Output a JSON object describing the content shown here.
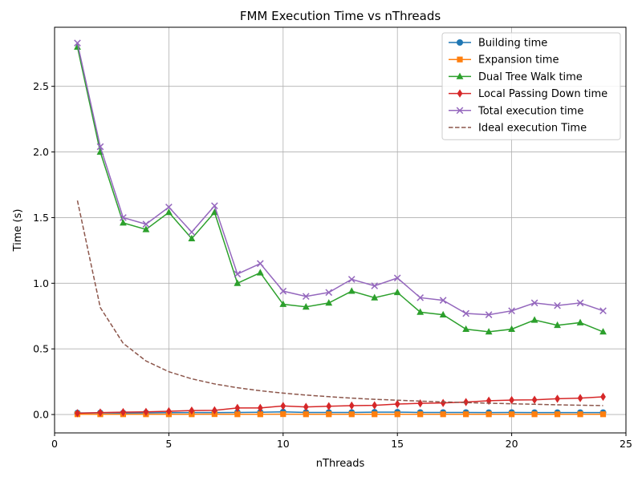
{
  "chart_data": {
    "type": "line",
    "title": "FMM Execution Time vs nThreads",
    "xlabel": "nThreads",
    "ylabel": "Time (s)",
    "xlim": [
      0,
      25
    ],
    "ylim": [
      -0.14,
      2.95
    ],
    "xticks": [
      0,
      5,
      10,
      15,
      20,
      25
    ],
    "yticks": [
      0.0,
      0.5,
      1.0,
      1.5,
      2.0,
      2.5
    ],
    "xtick_labels": [
      "0",
      "5",
      "10",
      "15",
      "20",
      "25"
    ],
    "ytick_labels": [
      "0.0",
      "0.5",
      "1.0",
      "1.5",
      "2.0",
      "2.5"
    ],
    "grid": true,
    "legend_position": "top-right",
    "x": [
      1,
      2,
      3,
      4,
      5,
      6,
      7,
      8,
      9,
      10,
      11,
      12,
      13,
      14,
      15,
      16,
      17,
      18,
      19,
      20,
      21,
      22,
      23,
      24
    ],
    "series": [
      {
        "name": "Building time",
        "color": "#1f77b4",
        "marker": "circle",
        "linestyle": "solid",
        "values": [
          0.012,
          0.013,
          0.012,
          0.013,
          0.014,
          0.015,
          0.015,
          0.016,
          0.017,
          0.02,
          0.016,
          0.016,
          0.016,
          0.018,
          0.018,
          0.016,
          0.016,
          0.016,
          0.015,
          0.016,
          0.015,
          0.015,
          0.015,
          0.015
        ]
      },
      {
        "name": "Expansion time",
        "color": "#ff7f0e",
        "marker": "square",
        "linestyle": "solid",
        "values": [
          0.002,
          0.002,
          0.002,
          0.002,
          0.002,
          0.002,
          0.003,
          0.002,
          0.002,
          0.003,
          0.002,
          0.002,
          0.002,
          0.002,
          0.002,
          0.002,
          0.002,
          0.002,
          0.002,
          0.002,
          0.002,
          0.002,
          0.002,
          0.002
        ]
      },
      {
        "name": "Dual Tree Walk time",
        "color": "#2ca02c",
        "marker": "triangle",
        "linestyle": "solid",
        "values": [
          2.8,
          2.0,
          1.46,
          1.41,
          1.54,
          1.34,
          1.54,
          1.0,
          1.08,
          0.84,
          0.82,
          0.85,
          0.94,
          0.89,
          0.93,
          0.78,
          0.76,
          0.65,
          0.63,
          0.65,
          0.72,
          0.68,
          0.7,
          0.63
        ]
      },
      {
        "name": "Local Passing Down time",
        "color": "#d62728",
        "marker": "diamond",
        "linestyle": "solid",
        "values": [
          0.01,
          0.015,
          0.018,
          0.02,
          0.025,
          0.03,
          0.032,
          0.05,
          0.05,
          0.065,
          0.058,
          0.063,
          0.068,
          0.07,
          0.08,
          0.085,
          0.088,
          0.095,
          0.105,
          0.11,
          0.112,
          0.12,
          0.125,
          0.135
        ]
      },
      {
        "name": "Total execution time",
        "color": "#9467bd",
        "marker": "x",
        "linestyle": "solid",
        "values": [
          2.83,
          2.04,
          1.5,
          1.45,
          1.58,
          1.39,
          1.59,
          1.07,
          1.15,
          0.94,
          0.9,
          0.93,
          1.03,
          0.98,
          1.04,
          0.89,
          0.87,
          0.77,
          0.76,
          0.79,
          0.85,
          0.83,
          0.85,
          0.79
        ]
      },
      {
        "name": "Ideal execution Time",
        "color": "#8c564b",
        "marker": "none",
        "linestyle": "dashed",
        "values": [
          1.63,
          0.815,
          0.543,
          0.408,
          0.326,
          0.272,
          0.233,
          0.204,
          0.181,
          0.163,
          0.148,
          0.136,
          0.125,
          0.116,
          0.109,
          0.102,
          0.096,
          0.091,
          0.086,
          0.082,
          0.078,
          0.074,
          0.071,
          0.068
        ]
      }
    ]
  }
}
